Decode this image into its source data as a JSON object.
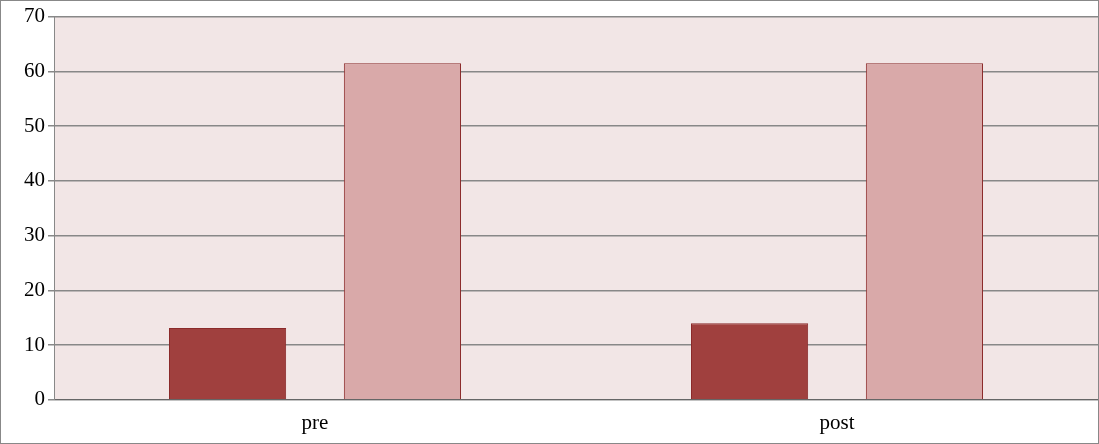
{
  "chart_data": {
    "type": "bar",
    "categories": [
      "pre",
      "post"
    ],
    "series": [
      {
        "color": "#a0403e",
        "values": [
          13.1,
          14.0
        ]
      },
      {
        "color": "#d9a9a9",
        "values": [
          61.5,
          61.5
        ]
      }
    ],
    "ylim": [
      0,
      70
    ],
    "yticks": [
      0,
      10,
      20,
      30,
      40,
      50,
      60,
      70
    ],
    "grid": "y",
    "legend": false
  }
}
